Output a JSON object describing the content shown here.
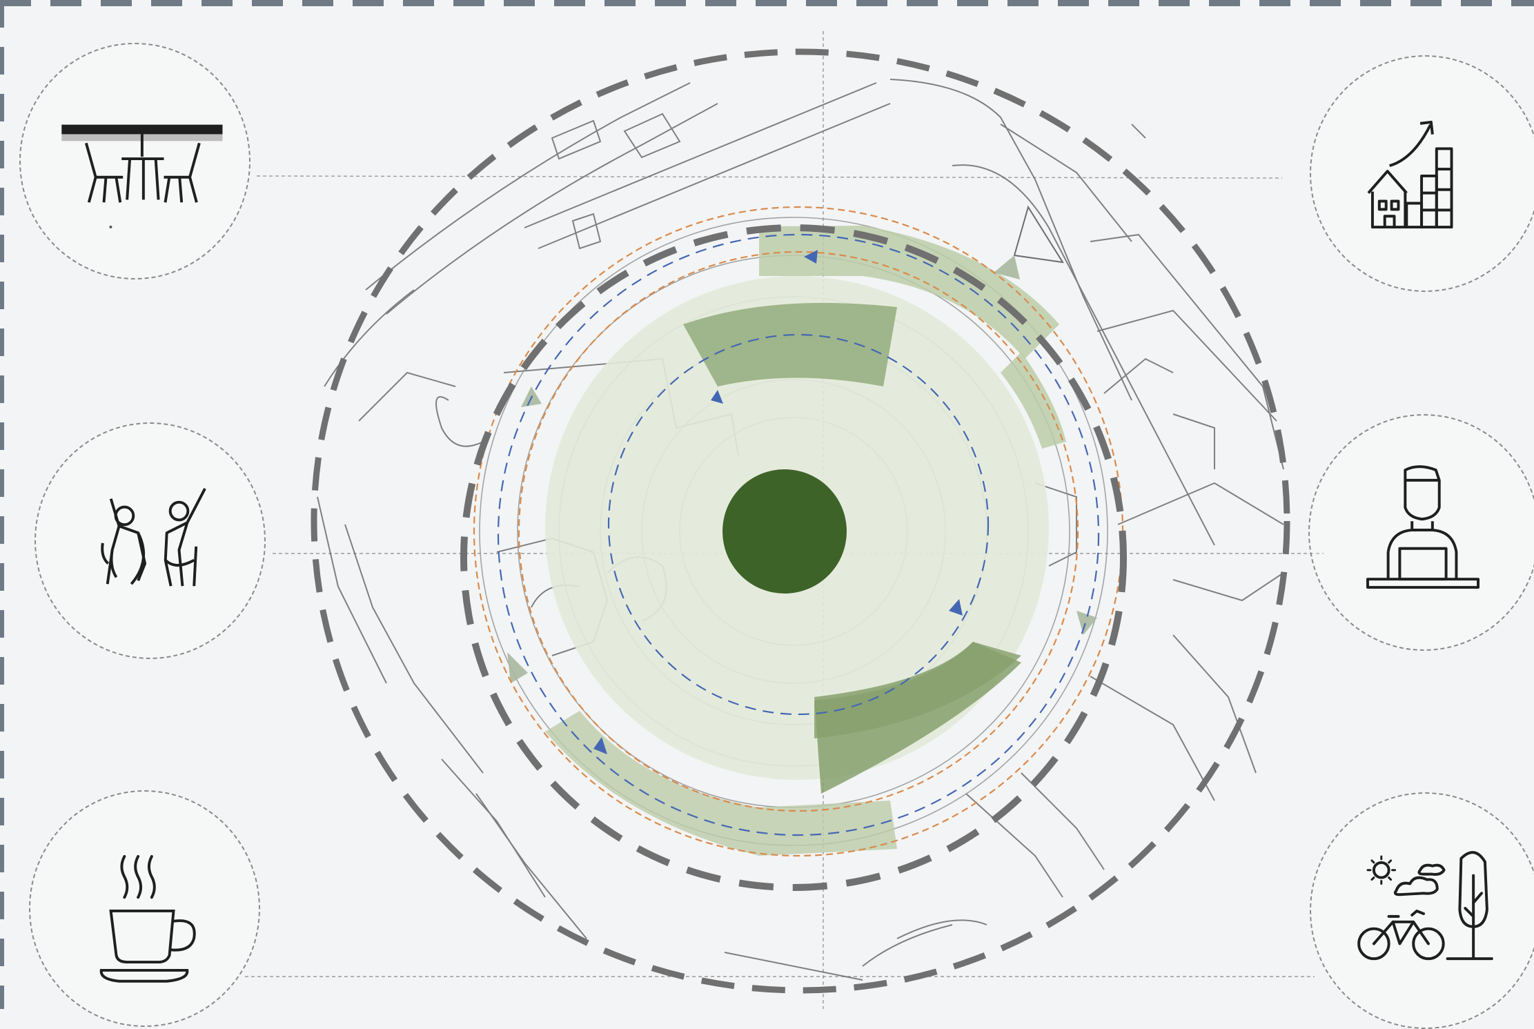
{
  "colors": {
    "background": "#f3f4f5",
    "frame_dash": "#6f7a86",
    "outer_ring_dash": "#6e6e6e",
    "map_lines": "#6b6b6b",
    "light_green": "#dfe8d6",
    "mid_green": "#a9bb97",
    "dark_green_core": "#3e6328",
    "orange_dash": "#d98a4b",
    "blue_dash": "#4467b3"
  },
  "icons": [
    {
      "name": "outdoor-dining-icon",
      "position": "top-left"
    },
    {
      "name": "exercising-people-icon",
      "position": "middle-left"
    },
    {
      "name": "coffee-cup-icon",
      "position": "bottom-left"
    },
    {
      "name": "housing-growth-icon",
      "position": "top-right"
    },
    {
      "name": "person-at-laptop-icon",
      "position": "middle-right"
    },
    {
      "name": "bike-and-nature-icon",
      "position": "bottom-right"
    }
  ]
}
